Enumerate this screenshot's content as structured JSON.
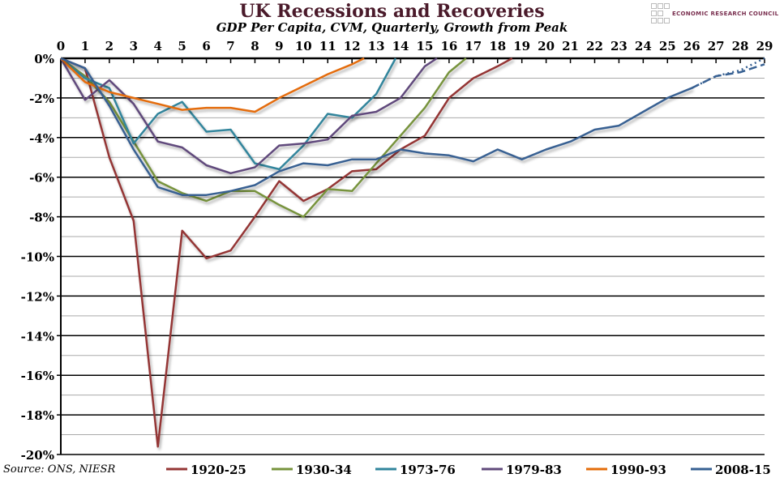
{
  "chart_data": {
    "type": "line",
    "title": "UK Recessions and Recoveries",
    "subtitle": "GDP Per Capita, CVM, Quarterly, Growth from Peak",
    "source": "Source: ONS, NIESR",
    "logo_text": "ECONOMIC RESEARCH COUNCIL",
    "xlim": [
      0,
      29
    ],
    "ylim": [
      -20,
      0
    ],
    "x_ticks": [
      0,
      1,
      2,
      3,
      4,
      5,
      6,
      7,
      8,
      9,
      10,
      11,
      12,
      13,
      14,
      15,
      16,
      17,
      18,
      19,
      20,
      21,
      22,
      23,
      24,
      25,
      26,
      27,
      28,
      29
    ],
    "y_ticks": [
      "0%",
      "-2%",
      "-4%",
      "-6%",
      "-8%",
      "-10%",
      "-12%",
      "-14%",
      "-16%",
      "-18%",
      "-20%"
    ],
    "x_axis_position": "top",
    "grid": true,
    "legend_position": "bottom",
    "series": [
      {
        "name": "1920-25",
        "color": "#943634",
        "x": [
          0,
          1,
          2,
          3,
          4,
          5,
          6,
          7,
          8,
          9,
          10,
          11,
          12,
          13,
          14,
          15,
          16,
          17,
          18,
          18.6
        ],
        "y": [
          0,
          -0.5,
          -5.0,
          -8.2,
          -19.6,
          -8.7,
          -10.1,
          -9.7,
          -8.0,
          -6.2,
          -7.2,
          -6.6,
          -5.7,
          -5.6,
          -4.6,
          -3.9,
          -2.0,
          -1.0,
          -0.4,
          0
        ]
      },
      {
        "name": "1930-34",
        "color": "#77933c",
        "x": [
          0,
          1,
          2,
          3,
          4,
          5,
          6,
          7,
          8,
          9,
          10,
          11,
          12,
          13,
          14,
          15,
          16,
          16.7
        ],
        "y": [
          0,
          -0.9,
          -2.2,
          -4.2,
          -6.2,
          -6.8,
          -7.2,
          -6.7,
          -6.7,
          -7.4,
          -8.0,
          -6.6,
          -6.7,
          -5.3,
          -3.9,
          -2.5,
          -0.7,
          0
        ]
      },
      {
        "name": "1973-76",
        "color": "#31859c",
        "x": [
          0,
          1,
          2,
          3,
          4,
          5,
          6,
          7,
          8,
          9,
          10,
          11,
          12,
          13,
          13.8
        ],
        "y": [
          0,
          -1.0,
          -1.5,
          -4.3,
          -2.8,
          -2.2,
          -3.7,
          -3.6,
          -5.3,
          -5.6,
          -4.4,
          -2.8,
          -3.0,
          -1.8,
          0
        ]
      },
      {
        "name": "1979-83",
        "color": "#604a7b",
        "x": [
          0,
          1,
          2,
          3,
          4,
          5,
          6,
          7,
          8,
          9,
          10,
          11,
          12,
          13,
          14,
          15,
          15.5
        ],
        "y": [
          0,
          -2.1,
          -1.1,
          -2.3,
          -4.2,
          -4.5,
          -5.4,
          -5.8,
          -5.5,
          -4.4,
          -4.3,
          -4.1,
          -2.9,
          -2.7,
          -2.0,
          -0.4,
          0
        ]
      },
      {
        "name": "1990-93",
        "color": "#e46c0a",
        "x": [
          0,
          1,
          2,
          3,
          4,
          5,
          6,
          7,
          8,
          9,
          10,
          11,
          12,
          12.5
        ],
        "y": [
          0,
          -1.2,
          -1.7,
          -2.0,
          -2.3,
          -2.6,
          -2.5,
          -2.5,
          -2.7,
          -2.0,
          -1.4,
          -0.8,
          -0.3,
          0
        ]
      },
      {
        "name": "2008-15",
        "color": "#376092",
        "x": [
          0,
          1,
          2,
          3,
          4,
          5,
          6,
          7,
          8,
          9,
          10,
          11,
          12,
          13,
          14,
          15,
          16,
          17,
          18,
          19,
          20,
          21,
          22,
          23,
          24,
          25,
          26
        ],
        "y": [
          0,
          -0.5,
          -2.4,
          -4.6,
          -6.5,
          -6.9,
          -6.9,
          -6.7,
          -6.4,
          -5.7,
          -5.3,
          -5.4,
          -5.1,
          -5.1,
          -4.6,
          -4.8,
          -4.9,
          -5.2,
          -4.6,
          -5.1,
          -4.6,
          -4.2,
          -3.6,
          -3.4,
          -2.7,
          -2.0,
          -1.5
        ]
      }
    ],
    "projections": [
      {
        "style": "dotted",
        "color": "#376092",
        "x": [
          26,
          27,
          28,
          29
        ],
        "y": [
          -1.5,
          -0.9,
          -0.6,
          0
        ]
      },
      {
        "style": "dashed",
        "color": "#376092",
        "x": [
          26,
          27,
          28,
          29
        ],
        "y": [
          -1.5,
          -0.9,
          -0.7,
          -0.3
        ]
      }
    ]
  }
}
